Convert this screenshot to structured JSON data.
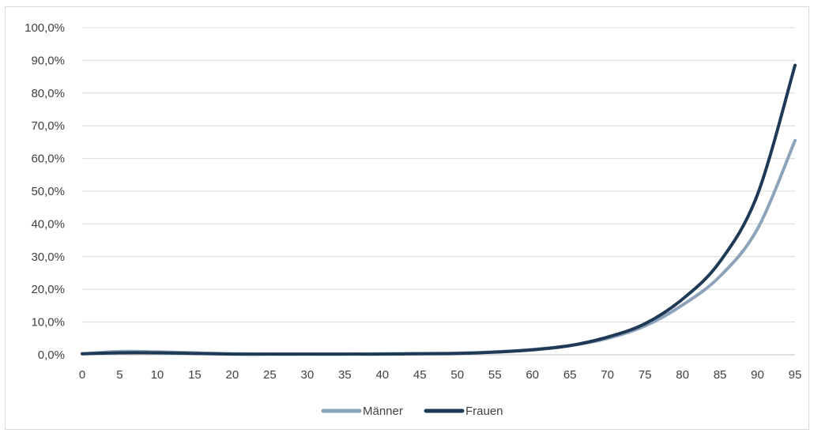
{
  "chart_data": {
    "type": "line",
    "title": "",
    "xlabel": "",
    "ylabel": "",
    "x": [
      0,
      5,
      10,
      15,
      20,
      25,
      30,
      35,
      40,
      45,
      50,
      55,
      60,
      65,
      70,
      75,
      80,
      85,
      90,
      95
    ],
    "x_tick_labels": [
      "0",
      "5",
      "10",
      "15",
      "20",
      "25",
      "30",
      "35",
      "40",
      "45",
      "50",
      "55",
      "60",
      "65",
      "70",
      "75",
      "80",
      "85",
      "90",
      "95"
    ],
    "y_tick_labels": [
      "0,0%",
      "10,0%",
      "20,0%",
      "30,0%",
      "40,0%",
      "50,0%",
      "60,0%",
      "70,0%",
      "80,0%",
      "90,0%",
      "100,0%"
    ],
    "ylim": [
      0,
      100
    ],
    "xlim": [
      0,
      95
    ],
    "grid": true,
    "legend_position": "bottom",
    "series": [
      {
        "name": "Männer",
        "color": "#8da3b9",
        "values": [
          0.3,
          1.0,
          0.9,
          0.6,
          0.3,
          0.2,
          0.2,
          0.2,
          0.3,
          0.4,
          0.5,
          0.9,
          1.6,
          2.8,
          5.0,
          8.8,
          15.2,
          24.0,
          38.5,
          65.5
        ]
      },
      {
        "name": "Frauen",
        "color": "#1f3a56",
        "values": [
          0.3,
          0.6,
          0.6,
          0.4,
          0.2,
          0.2,
          0.2,
          0.2,
          0.2,
          0.3,
          0.4,
          0.8,
          1.5,
          2.8,
          5.4,
          9.5,
          17.0,
          28.5,
          49.0,
          88.5
        ]
      }
    ]
  }
}
